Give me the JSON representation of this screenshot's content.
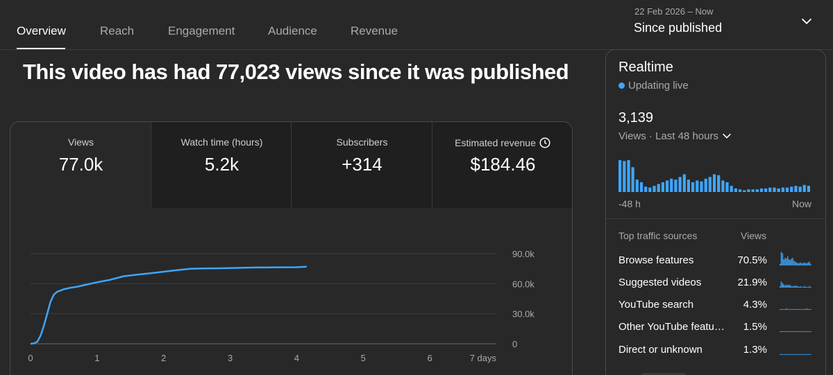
{
  "tabs": [
    {
      "label": "Overview",
      "active": true
    },
    {
      "label": "Reach",
      "active": false
    },
    {
      "label": "Engagement",
      "active": false
    },
    {
      "label": "Audience",
      "active": false
    },
    {
      "label": "Revenue",
      "active": false
    }
  ],
  "date_range": {
    "range_text": "22 Feb 2026 – Now",
    "label": "Since published",
    "icon": "chevron-down-icon"
  },
  "headline": "This video has had 77,023 views since it was published",
  "metrics": [
    {
      "label": "Views",
      "value": "77.0k",
      "selected": true
    },
    {
      "label": "Watch time (hours)",
      "value": "5.2k",
      "selected": false
    },
    {
      "label": "Subscribers",
      "value": "+314",
      "selected": false
    },
    {
      "label": "Estimated revenue",
      "value": "$184.46",
      "selected": false,
      "icon": "clock-icon"
    }
  ],
  "chart_data": {
    "type": "line",
    "x": [
      0,
      0.05,
      0.1,
      0.15,
      0.2,
      0.25,
      0.3,
      0.35,
      0.4,
      0.5,
      0.6,
      0.7,
      0.8,
      0.9,
      1.0,
      1.2,
      1.4,
      1.6,
      1.8,
      2.0,
      2.2,
      2.4,
      2.6,
      2.8,
      3.0,
      3.2,
      3.4,
      3.6,
      3.8,
      4.0,
      4.15
    ],
    "y": [
      0,
      500,
      2000,
      8000,
      18000,
      30000,
      42000,
      49000,
      52000,
      54500,
      56000,
      57000,
      58500,
      60000,
      61500,
      64000,
      67500,
      69000,
      70500,
      72000,
      73500,
      75000,
      75300,
      75400,
      75600,
      76000,
      76200,
      76300,
      76400,
      76500,
      77023
    ],
    "x_ticks": [
      "0",
      "1",
      "2",
      "3",
      "4",
      "5",
      "6",
      "7 days"
    ],
    "y_ticks": [
      "0",
      "30.0k",
      "60.0k",
      "90.0k"
    ],
    "xlim": [
      0,
      7
    ],
    "ylim": [
      0,
      90000
    ],
    "grid": true,
    "color": "#3ea6ff"
  },
  "realtime": {
    "title": "Realtime",
    "status": "Updating live",
    "count": "3,139",
    "period": "Views · Last 48 hours",
    "axis_left": "-48 h",
    "axis_right": "Now",
    "bars": [
      36,
      35,
      36,
      28,
      14,
      11,
      6,
      5,
      7,
      9,
      11,
      13,
      15,
      14,
      17,
      20,
      14,
      11,
      13,
      12,
      15,
      17,
      20,
      19,
      13,
      11,
      7,
      4,
      3,
      2,
      3,
      3,
      3,
      4,
      4,
      5,
      5,
      4,
      5,
      5,
      6,
      7,
      6,
      8,
      7
    ],
    "bar_color": "#3ea6ff",
    "traffic_header": "Top traffic sources",
    "views_header": "Views",
    "sources": [
      {
        "name": "Browse features",
        "pct": "70.5%",
        "spark": [
          2,
          18,
          16,
          8,
          10,
          9,
          12,
          8,
          7,
          9,
          10,
          6,
          5,
          4,
          3,
          3,
          4,
          3,
          3,
          4,
          3,
          3,
          4,
          5,
          2
        ]
      },
      {
        "name": "Suggested videos",
        "pct": "21.9%",
        "spark": [
          2,
          8,
          6,
          4,
          3,
          4,
          3,
          4,
          3,
          2,
          2,
          2,
          3,
          2,
          2,
          1,
          2,
          1,
          1,
          2,
          1,
          1,
          1,
          2,
          1
        ]
      },
      {
        "name": "YouTube search",
        "pct": "4.3%",
        "spark": [
          1,
          1,
          1,
          1,
          1,
          2,
          1,
          1,
          1,
          1,
          1,
          1,
          1,
          1,
          1,
          1,
          1,
          1,
          1,
          1,
          1,
          2,
          1,
          1,
          1
        ]
      },
      {
        "name": "Other YouTube features",
        "pct": "1.5%",
        "spark": [
          1,
          1,
          1,
          1,
          1,
          1,
          1,
          1,
          1,
          1,
          1,
          1,
          1,
          1,
          1,
          1,
          1,
          1,
          1,
          1,
          1,
          1,
          1,
          1,
          1
        ]
      },
      {
        "name": "Direct or unknown",
        "pct": "1.3%",
        "spark": [
          1,
          1,
          1,
          1,
          1,
          1,
          1,
          1,
          1,
          1,
          1,
          1,
          1,
          1,
          1,
          1,
          1,
          1,
          1,
          1,
          1,
          1,
          1,
          1,
          1
        ]
      }
    ]
  }
}
